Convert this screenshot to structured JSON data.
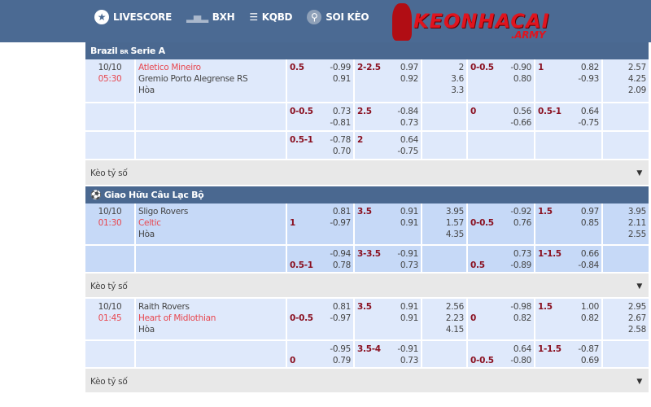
{
  "nav": {
    "items": [
      {
        "label": "LIVESCORE",
        "icon": "star-circle-icon"
      },
      {
        "label": "BXH",
        "icon": "podium-icon"
      },
      {
        "label": "KQBD",
        "icon": "checklist-icon"
      },
      {
        "label": "SOI KÈO",
        "icon": "magnifier-icon"
      }
    ]
  },
  "logo": {
    "text": "KEONHACAI",
    "sub": ".ARMY"
  },
  "keo_label": "Kèo tỷ số",
  "colors": {
    "header": "#4b6a93",
    "line": "#8a1020",
    "time": "#e8474f"
  },
  "leagues": [
    {
      "name": "Brazil",
      "flag": "BR",
      "suffix": "Serie A",
      "matches": [
        {
          "shade": "l",
          "date": "10/10",
          "time": "05:30",
          "home": "Atletico Mineiro",
          "away": "Gremio Porto Alegrense RS",
          "draw": "Hòa",
          "fav": "home",
          "rows": [
            [
              {
                "line": [
                  "0.5",
                  ""
                ],
                "odds": [
                  "-0.99",
                  "0.91"
                ]
              },
              {
                "line": [
                  "2-2.5",
                  ""
                ],
                "odds": [
                  "0.97",
                  "0.92"
                ]
              },
              {
                "odds": [
                  "2",
                  "3.6",
                  "3.3"
                ]
              },
              {
                "line": [
                  "0-0.5",
                  ""
                ],
                "odds": [
                  "-0.90",
                  "0.80"
                ]
              },
              {
                "line": [
                  "1",
                  ""
                ],
                "odds": [
                  "0.82",
                  "-0.93"
                ]
              },
              {
                "odds": [
                  "2.57",
                  "4.25",
                  "2.09"
                ]
              }
            ],
            [
              {
                "line": [
                  "0-0.5",
                  ""
                ],
                "odds": [
                  "0.73",
                  "-0.81"
                ]
              },
              {
                "line": [
                  "2.5",
                  ""
                ],
                "odds": [
                  "-0.84",
                  "0.73"
                ]
              },
              {
                "odds": []
              },
              {
                "line": [
                  "0",
                  ""
                ],
                "odds": [
                  "0.56",
                  "-0.66"
                ]
              },
              {
                "line": [
                  "0.5-1",
                  ""
                ],
                "odds": [
                  "0.64",
                  "-0.75"
                ]
              },
              {
                "odds": []
              }
            ],
            [
              {
                "line": [
                  "0.5-1",
                  ""
                ],
                "odds": [
                  "-0.78",
                  "0.70"
                ]
              },
              {
                "line": [
                  "2",
                  ""
                ],
                "odds": [
                  "0.64",
                  "-0.75"
                ]
              },
              {
                "odds": []
              },
              {
                "odds": []
              },
              {
                "odds": []
              },
              {
                "odds": []
              }
            ]
          ]
        }
      ]
    },
    {
      "name": "Giao Hữu Câu Lạc Bộ",
      "icon": "soccer-ball-icon",
      "matches": [
        {
          "shade": "d",
          "date": "10/10",
          "time": "01:30",
          "home": "Sligo Rovers",
          "away": "Celtic",
          "draw": "Hòa",
          "fav": "away",
          "rows": [
            [
              {
                "line": [
                  "",
                  "1"
                ],
                "odds": [
                  "0.81",
                  "-0.97"
                ]
              },
              {
                "line": [
                  "3.5",
                  ""
                ],
                "odds": [
                  "0.91",
                  "0.91"
                ]
              },
              {
                "odds": [
                  "3.95",
                  "1.57",
                  "4.35"
                ]
              },
              {
                "line": [
                  "",
                  "0-0.5"
                ],
                "odds": [
                  "-0.92",
                  "0.76"
                ]
              },
              {
                "line": [
                  "1.5",
                  ""
                ],
                "odds": [
                  "0.97",
                  "0.85"
                ]
              },
              {
                "odds": [
                  "3.95",
                  "2.11",
                  "2.55"
                ]
              }
            ],
            [
              {
                "line": [
                  "",
                  "0.5-1"
                ],
                "odds": [
                  "-0.94",
                  "0.78"
                ]
              },
              {
                "line": [
                  "3-3.5",
                  ""
                ],
                "odds": [
                  "-0.91",
                  "0.73"
                ]
              },
              {
                "odds": []
              },
              {
                "line": [
                  "",
                  "0.5"
                ],
                "odds": [
                  "0.73",
                  "-0.89"
                ]
              },
              {
                "line": [
                  "1-1.5",
                  ""
                ],
                "odds": [
                  "0.66",
                  "-0.84"
                ]
              },
              {
                "odds": []
              }
            ]
          ]
        },
        {
          "shade": "l",
          "date": "10/10",
          "time": "01:45",
          "home": "Raith Rovers",
          "away": "Heart of Midlothian",
          "draw": "Hòa",
          "fav": "away",
          "rows": [
            [
              {
                "line": [
                  "",
                  "0-0.5"
                ],
                "odds": [
                  "0.81",
                  "-0.97"
                ]
              },
              {
                "line": [
                  "3.5",
                  ""
                ],
                "odds": [
                  "0.91",
                  "0.91"
                ]
              },
              {
                "odds": [
                  "2.56",
                  "2.23",
                  "4.15"
                ]
              },
              {
                "line": [
                  "",
                  "0"
                ],
                "odds": [
                  "-0.98",
                  "0.82"
                ]
              },
              {
                "line": [
                  "1.5",
                  ""
                ],
                "odds": [
                  "1.00",
                  "0.82"
                ]
              },
              {
                "odds": [
                  "2.95",
                  "2.67",
                  "2.58"
                ]
              }
            ],
            [
              {
                "line": [
                  "",
                  "0"
                ],
                "odds": [
                  "-0.95",
                  "0.79"
                ]
              },
              {
                "line": [
                  "3.5-4",
                  ""
                ],
                "odds": [
                  "-0.91",
                  "0.73"
                ]
              },
              {
                "odds": []
              },
              {
                "line": [
                  "",
                  "0-0.5"
                ],
                "odds": [
                  "0.64",
                  "-0.80"
                ]
              },
              {
                "line": [
                  "1-1.5",
                  ""
                ],
                "odds": [
                  "-0.87",
                  "0.69"
                ]
              },
              {
                "odds": []
              }
            ]
          ]
        }
      ]
    }
  ]
}
